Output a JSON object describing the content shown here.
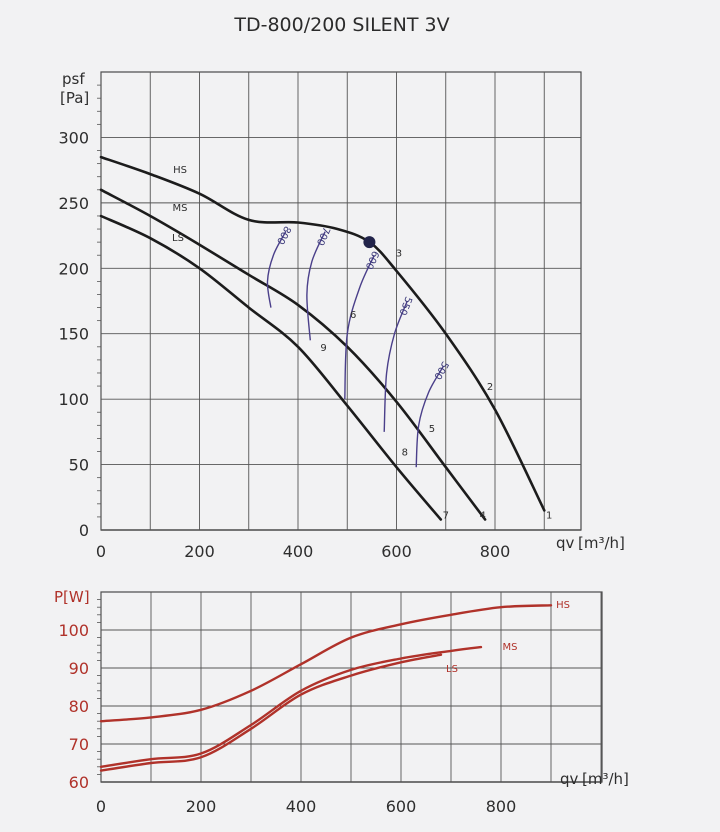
{
  "title": "TD-800/200 SILENT 3V",
  "chart_data": [
    {
      "type": "line",
      "title": "TD-800/200 SILENT 3V",
      "xlabel": "qv [m³/h]",
      "ylabel": "psf [Pa]",
      "xlim": [
        0,
        950
      ],
      "ylim": [
        0,
        300
      ],
      "xticks": [
        "0",
        "200",
        "400",
        "600",
        "800"
      ],
      "yticks": [
        "0",
        "50",
        "100",
        "150",
        "200",
        "250",
        "300"
      ],
      "grid": true,
      "colors": {
        "curve": "#1c1c1c",
        "iso": "#4a3f8a",
        "point": "#22244a"
      },
      "series": [
        {
          "name": "HS",
          "x": [
            0,
            100,
            200,
            300,
            400,
            480,
            545,
            600,
            700,
            800,
            900
          ],
          "y": [
            285,
            272,
            257,
            237,
            235,
            230,
            220,
            198,
            150,
            92,
            15
          ]
        },
        {
          "name": "MS",
          "x": [
            0,
            100,
            200,
            300,
            400,
            500,
            600,
            700,
            780
          ],
          "y": [
            260,
            240,
            218,
            195,
            172,
            140,
            98,
            48,
            8
          ]
        },
        {
          "name": "LS",
          "x": [
            0,
            100,
            200,
            300,
            400,
            500,
            600,
            690
          ],
          "y": [
            240,
            223,
            200,
            170,
            140,
            95,
            48,
            8
          ]
        }
      ],
      "rpm_curves": [
        {
          "label": "800",
          "x": [
            375,
            350,
            338,
            345
          ],
          "y": [
            228,
            210,
            190,
            170
          ]
        },
        {
          "label": "700",
          "x": [
            455,
            428,
            418,
            425
          ],
          "y": [
            228,
            205,
            180,
            145
          ]
        },
        {
          "label": "600",
          "x": [
            555,
            525,
            500,
            495
          ],
          "y": [
            210,
            185,
            150,
            100
          ]
        },
        {
          "label": "550",
          "x": [
            622,
            596,
            580,
            575
          ],
          "y": [
            175,
            150,
            120,
            75
          ]
        },
        {
          "label": "500",
          "x": [
            695,
            665,
            645,
            640
          ],
          "y": [
            125,
            105,
            80,
            48
          ]
        }
      ],
      "point_labels": [
        {
          "label": "1",
          "x": 910,
          "y": 12
        },
        {
          "label": "2",
          "x": 790,
          "y": 110
        },
        {
          "label": "3",
          "x": 605,
          "y": 212
        },
        {
          "label": "4",
          "x": 775,
          "y": 12
        },
        {
          "label": "5",
          "x": 672,
          "y": 78
        },
        {
          "label": "6",
          "x": 512,
          "y": 165
        },
        {
          "label": "7",
          "x": 700,
          "y": 12
        },
        {
          "label": "8",
          "x": 617,
          "y": 60
        },
        {
          "label": "9",
          "x": 452,
          "y": 140
        }
      ],
      "operating_point": {
        "x": 545,
        "y": 220
      }
    },
    {
      "type": "line",
      "xlabel": "qv [m³/h]",
      "ylabel": "P[W]",
      "xlim": [
        0,
        1000
      ],
      "ylim": [
        60,
        110
      ],
      "xticks": [
        "0",
        "200",
        "400",
        "600",
        "800"
      ],
      "yticks": [
        "60",
        "70",
        "80",
        "90",
        "100"
      ],
      "grid": true,
      "colors": {
        "curve": "#b0322a"
      },
      "series": [
        {
          "name": "HS",
          "x": [
            0,
            100,
            200,
            300,
            400,
            500,
            600,
            700,
            800,
            900
          ],
          "y": [
            76,
            77,
            79,
            84,
            91,
            98,
            101.5,
            104,
            106,
            106.5
          ]
        },
        {
          "name": "MS",
          "x": [
            0,
            100,
            200,
            300,
            400,
            500,
            600,
            700,
            760
          ],
          "y": [
            64,
            66,
            67.5,
            75,
            84,
            89.5,
            92.5,
            94.5,
            95.5
          ]
        },
        {
          "name": "LS",
          "x": [
            0,
            100,
            200,
            300,
            400,
            500,
            600,
            680
          ],
          "y": [
            63,
            65,
            66.5,
            74,
            83,
            88,
            91.5,
            93.5
          ]
        }
      ]
    }
  ]
}
